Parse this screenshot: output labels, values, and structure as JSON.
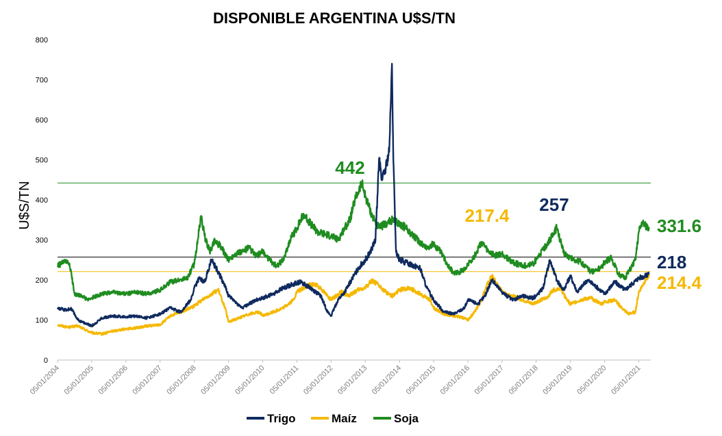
{
  "chart_data": {
    "type": "line",
    "title": "DISPONIBLE ARGENTINA U$S/TN",
    "ylabel": "U$S/TN",
    "xlabel": "",
    "ylim": [
      0,
      800
    ],
    "yticks": [
      0,
      100,
      200,
      300,
      400,
      500,
      600,
      700,
      800
    ],
    "x_ticks": [
      "05/01/2004",
      "05/01/2005",
      "05/01/2006",
      "05/01/2007",
      "05/01/2008",
      "05/01/2009",
      "05/01/2010",
      "05/01/2011",
      "05/01/2012",
      "05/01/2013",
      "05/01/2014",
      "05/01/2015",
      "05/01/2016",
      "05/01/2017",
      "05/01/2018",
      "05/01/2019",
      "05/01/2020",
      "05/01/2021"
    ],
    "x_range": [
      2004.0,
      2021.35
    ],
    "legend_position": "bottom",
    "colors": {
      "trigo": "#0f2a5e",
      "maiz": "#f5b800",
      "soja": "#1f8c1f"
    },
    "series": [
      {
        "name": "Trigo",
        "key": "trigo",
        "x": [
          2004.0,
          2004.2,
          2004.4,
          2004.6,
          2004.8,
          2005.0,
          2005.3,
          2005.6,
          2006.0,
          2006.3,
          2006.6,
          2007.0,
          2007.3,
          2007.6,
          2007.9,
          2008.0,
          2008.15,
          2008.3,
          2008.5,
          2008.7,
          2008.9,
          2009.0,
          2009.2,
          2009.4,
          2009.6,
          2009.8,
          2010.0,
          2010.3,
          2010.6,
          2010.9,
          2011.1,
          2011.4,
          2011.7,
          2011.9,
          2012.0,
          2012.2,
          2012.4,
          2012.6,
          2012.8,
          2013.0,
          2013.15,
          2013.3,
          2013.4,
          2013.5,
          2013.6,
          2013.7,
          2013.75,
          2013.78,
          2013.82,
          2013.9,
          2014.0,
          2014.3,
          2014.6,
          2014.8,
          2015.0,
          2015.3,
          2015.6,
          2015.9,
          2016.0,
          2016.3,
          2016.5,
          2016.7,
          2017.0,
          2017.3,
          2017.6,
          2017.9,
          2018.0,
          2018.2,
          2018.4,
          2018.6,
          2018.8,
          2019.0,
          2019.2,
          2019.5,
          2019.8,
          2020.0,
          2020.3,
          2020.6,
          2020.8,
          2021.0,
          2021.2,
          2021.3
        ],
        "values": [
          130,
          125,
          128,
          100,
          92,
          85,
          105,
          110,
          108,
          110,
          105,
          115,
          130,
          120,
          150,
          180,
          205,
          195,
          250,
          220,
          185,
          160,
          145,
          130,
          140,
          150,
          155,
          165,
          180,
          190,
          195,
          180,
          160,
          120,
          110,
          150,
          170,
          200,
          230,
          250,
          270,
          300,
          500,
          450,
          480,
          520,
          650,
          740,
          500,
          270,
          250,
          240,
          230,
          180,
          150,
          120,
          115,
          130,
          150,
          140,
          160,
          200,
          170,
          150,
          160,
          155,
          160,
          180,
          250,
          200,
          175,
          210,
          170,
          200,
          180,
          165,
          195,
          175,
          190,
          205,
          210,
          218
        ]
      },
      {
        "name": "Maíz",
        "key": "maiz",
        "x": [
          2004.0,
          2004.3,
          2004.6,
          2004.9,
          2005.0,
          2005.3,
          2005.6,
          2006.0,
          2006.3,
          2006.6,
          2007.0,
          2007.3,
          2007.6,
          2007.9,
          2008.0,
          2008.3,
          2008.5,
          2008.7,
          2008.9,
          2009.0,
          2009.3,
          2009.6,
          2009.9,
          2010.0,
          2010.3,
          2010.6,
          2010.9,
          2011.0,
          2011.3,
          2011.5,
          2011.7,
          2011.9,
          2012.0,
          2012.3,
          2012.5,
          2012.8,
          2013.0,
          2013.2,
          2013.4,
          2013.6,
          2013.8,
          2014.0,
          2014.3,
          2014.6,
          2014.9,
          2015.0,
          2015.3,
          2015.6,
          2015.9,
          2016.0,
          2016.2,
          2016.4,
          2016.5,
          2016.7,
          2017.0,
          2017.3,
          2017.6,
          2017.9,
          2018.0,
          2018.3,
          2018.5,
          2018.7,
          2018.9,
          2019.0,
          2019.3,
          2019.6,
          2019.9,
          2020.0,
          2020.3,
          2020.5,
          2020.7,
          2020.9,
          2021.0,
          2021.2,
          2021.3
        ],
        "values": [
          88,
          82,
          85,
          72,
          68,
          65,
          72,
          78,
          80,
          85,
          88,
          110,
          120,
          130,
          135,
          155,
          165,
          175,
          130,
          95,
          105,
          115,
          120,
          110,
          120,
          130,
          150,
          170,
          185,
          190,
          180,
          160,
          150,
          170,
          160,
          175,
          180,
          200,
          185,
          170,
          160,
          175,
          180,
          165,
          150,
          130,
          115,
          110,
          105,
          100,
          120,
          150,
          175,
          210,
          170,
          160,
          150,
          140,
          145,
          155,
          175,
          180,
          150,
          140,
          150,
          155,
          140,
          145,
          150,
          130,
          115,
          120,
          170,
          200,
          214.4
        ]
      },
      {
        "name": "Soja",
        "key": "soja",
        "x": [
          2004.0,
          2004.2,
          2004.35,
          2004.5,
          2004.7,
          2004.9,
          2005.0,
          2005.3,
          2005.6,
          2006.0,
          2006.3,
          2006.6,
          2007.0,
          2007.3,
          2007.6,
          2007.8,
          2008.0,
          2008.1,
          2008.2,
          2008.3,
          2008.45,
          2008.6,
          2008.8,
          2009.0,
          2009.2,
          2009.4,
          2009.6,
          2009.8,
          2010.0,
          2010.2,
          2010.4,
          2010.6,
          2010.8,
          2011.0,
          2011.2,
          2011.4,
          2011.6,
          2011.8,
          2012.0,
          2012.2,
          2012.4,
          2012.55,
          2012.7,
          2012.9,
          2013.0,
          2013.2,
          2013.4,
          2013.6,
          2013.8,
          2014.0,
          2014.2,
          2014.4,
          2014.6,
          2014.8,
          2015.0,
          2015.2,
          2015.4,
          2015.6,
          2015.9,
          2016.0,
          2016.2,
          2016.4,
          2016.6,
          2016.8,
          2017.0,
          2017.3,
          2017.6,
          2017.9,
          2018.0,
          2018.2,
          2018.4,
          2018.6,
          2018.8,
          2019.0,
          2019.3,
          2019.6,
          2019.9,
          2020.0,
          2020.2,
          2020.4,
          2020.6,
          2020.8,
          2020.9,
          2021.0,
          2021.1,
          2021.2,
          2021.3
        ],
        "values": [
          235,
          245,
          240,
          165,
          160,
          150,
          155,
          165,
          170,
          165,
          170,
          165,
          175,
          195,
          200,
          205,
          240,
          300,
          360,
          310,
          270,
          300,
          280,
          250,
          265,
          270,
          280,
          260,
          270,
          250,
          235,
          250,
          300,
          330,
          365,
          340,
          320,
          315,
          310,
          300,
          330,
          350,
          400,
          442,
          410,
          360,
          330,
          340,
          350,
          340,
          330,
          310,
          295,
          280,
          290,
          270,
          240,
          215,
          225,
          240,
          260,
          295,
          270,
          260,
          265,
          245,
          235,
          240,
          250,
          275,
          300,
          330,
          270,
          255,
          245,
          220,
          230,
          245,
          255,
          215,
          205,
          235,
          250,
          320,
          345,
          335,
          331.6
        ]
      }
    ],
    "reference_lines": [
      {
        "value": 442,
        "color_key": "soja"
      },
      {
        "value": 257,
        "color_key": "black"
      },
      {
        "value": 221,
        "color_key": "maiz"
      }
    ],
    "annotations": [
      {
        "text": "442",
        "color_key": "soja"
      },
      {
        "text": "217.4",
        "color_key": "maiz"
      },
      {
        "text": "257",
        "color_key": "trigo"
      },
      {
        "text": "331.6",
        "color_key": "soja"
      },
      {
        "text": "218",
        "color_key": "trigo"
      },
      {
        "text": "214.4",
        "color_key": "maiz"
      }
    ]
  }
}
